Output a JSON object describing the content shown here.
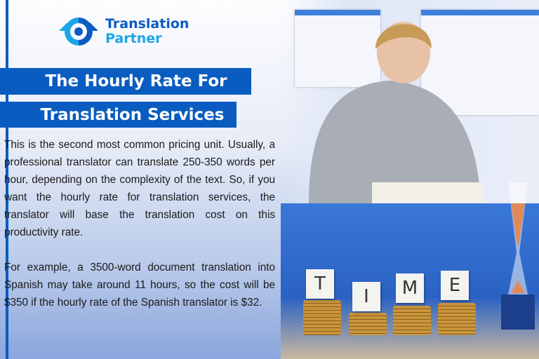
{
  "logo": {
    "line1": "Translation",
    "line2": "Partner",
    "icon": "target-arrows-icon",
    "colors": [
      "#0a5cc0",
      "#1aa6e6"
    ]
  },
  "title": {
    "line1": "The Hourly Rate For",
    "line2": "Translation Services"
  },
  "body": {
    "p1": "This is the second most common pricing unit. Usually, a professional translator can translate 250-350 words per hour, depending on the complexity of the text. So, if you want the hourly rate for translation services, the translator will base the translation cost on this productivity rate.",
    "p2": "For example, a 3500-word document translation into Spanish may take around 11 hours, so the cost will be $350 if the hourly rate of the Spanish translator is $32."
  },
  "tiles": [
    "T",
    "I",
    "M",
    "E"
  ],
  "accent": "#0a5cc0"
}
